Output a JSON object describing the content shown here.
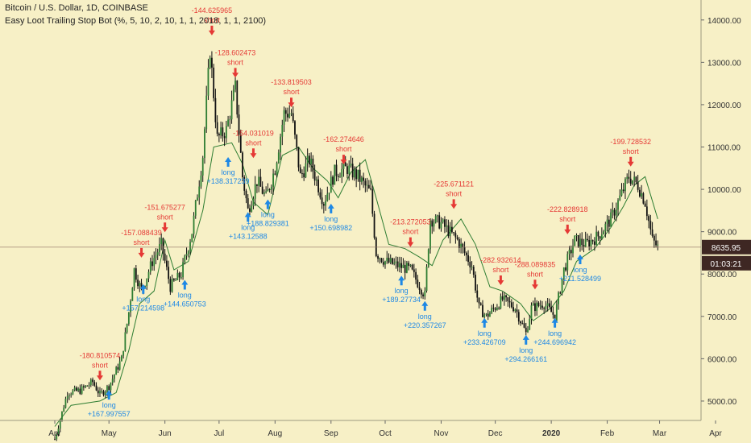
{
  "header": {
    "title": "Bitcoin / U.S. Dollar, 1D, COINBASE",
    "indicator": "Easy Loot Trailing Stop Bot (%, 5, 10, 2, 10, 1, 1, 2018, 1, 1, 2100)"
  },
  "price_badge": {
    "last_price": "8635.95",
    "countdown": "01:03:21"
  },
  "colors": {
    "background": "#f7f0c6",
    "long": "#1e88e5",
    "short": "#e53935",
    "stop_line": "#2e7d32",
    "stop_line_dark": "#3e2723",
    "candle": "#111111"
  },
  "chart_data": {
    "type": "candlestick",
    "x_axis": {
      "date_range": [
        "2019-04-01",
        "2020-04-01"
      ],
      "ticks": [
        {
          "date": "2019-04-01",
          "label": "Apr"
        },
        {
          "date": "2019-05-01",
          "label": "May"
        },
        {
          "date": "2019-06-01",
          "label": "Jun"
        },
        {
          "date": "2019-07-01",
          "label": "Jul"
        },
        {
          "date": "2019-08-01",
          "label": "Aug"
        },
        {
          "date": "2019-09-01",
          "label": "Sep"
        },
        {
          "date": "2019-10-01",
          "label": "Oct"
        },
        {
          "date": "2019-11-01",
          "label": "Nov"
        },
        {
          "date": "2019-12-01",
          "label": "Dec"
        },
        {
          "date": "2020-01-01",
          "label": "2020"
        },
        {
          "date": "2020-02-01",
          "label": "Feb"
        },
        {
          "date": "2020-03-01",
          "label": "Mar"
        },
        {
          "date": "2020-04-01",
          "label": "Apr"
        }
      ]
    },
    "y_axis": {
      "range": [
        4200,
        14700
      ],
      "ticks": [
        {
          "value": 5000,
          "label": "5000.00"
        },
        {
          "value": 6000,
          "label": "6000.00"
        },
        {
          "value": 7000,
          "label": "7000.00"
        },
        {
          "value": 8000,
          "label": "8000.00"
        },
        {
          "value": 9000,
          "label": "9000.00"
        },
        {
          "value": 10000,
          "label": "10000.00"
        },
        {
          "value": 11000,
          "label": "11000.00"
        },
        {
          "value": 12000,
          "label": "12000.00"
        },
        {
          "value": 13000,
          "label": "13000.00"
        },
        {
          "value": 14000,
          "label": "14000.00"
        }
      ]
    },
    "price_path": [
      [
        "2019-04-01",
        4100
      ],
      [
        "2019-04-08",
        5200
      ],
      [
        "2019-04-15",
        5250
      ],
      [
        "2019-04-22",
        5450
      ],
      [
        "2019-04-26",
        5150
      ],
      [
        "2019-05-01",
        5350
      ],
      [
        "2019-05-08",
        6000
      ],
      [
        "2019-05-12",
        7100
      ],
      [
        "2019-05-15",
        8100
      ],
      [
        "2019-05-19",
        7600
      ],
      [
        "2019-05-25",
        8300
      ],
      [
        "2019-05-30",
        8700
      ],
      [
        "2019-06-04",
        7700
      ],
      [
        "2019-06-10",
        8000
      ],
      [
        "2019-06-16",
        9000
      ],
      [
        "2019-06-22",
        10800
      ],
      [
        "2019-06-26",
        13300
      ],
      [
        "2019-06-30",
        11200
      ],
      [
        "2019-07-05",
        11400
      ],
      [
        "2019-07-10",
        12400
      ],
      [
        "2019-07-14",
        10300
      ],
      [
        "2019-07-17",
        9500
      ],
      [
        "2019-07-22",
        10200
      ],
      [
        "2019-07-27",
        9800
      ],
      [
        "2019-08-01",
        10500
      ],
      [
        "2019-08-06",
        11800
      ],
      [
        "2019-08-10",
        11800
      ],
      [
        "2019-08-15",
        10300
      ],
      [
        "2019-08-20",
        10700
      ],
      [
        "2019-08-28",
        9700
      ],
      [
        "2019-09-03",
        10400
      ],
      [
        "2019-09-10",
        10500
      ],
      [
        "2019-09-16",
        10300
      ],
      [
        "2019-09-23",
        9900
      ],
      [
        "2019-09-26",
        8500
      ],
      [
        "2019-10-01",
        8300
      ],
      [
        "2019-10-08",
        8200
      ],
      [
        "2019-10-15",
        8100
      ],
      [
        "2019-10-23",
        7500
      ],
      [
        "2019-10-26",
        9300
      ],
      [
        "2019-11-01",
        9200
      ],
      [
        "2019-11-10",
        8800
      ],
      [
        "2019-11-18",
        8200
      ],
      [
        "2019-11-22",
        7200
      ],
      [
        "2019-11-26",
        7000
      ],
      [
        "2019-12-05",
        7400
      ],
      [
        "2019-12-12",
        7200
      ],
      [
        "2019-12-18",
        6600
      ],
      [
        "2019-12-21",
        7200
      ],
      [
        "2019-12-28",
        7300
      ],
      [
        "2020-01-03",
        7000
      ],
      [
        "2020-01-08",
        8100
      ],
      [
        "2020-01-14",
        8800
      ],
      [
        "2020-01-20",
        8700
      ],
      [
        "2020-01-27",
        8900
      ],
      [
        "2020-02-03",
        9300
      ],
      [
        "2020-02-08",
        9800
      ],
      [
        "2020-02-13",
        10300
      ],
      [
        "2020-02-18",
        10100
      ],
      [
        "2020-02-22",
        9700
      ],
      [
        "2020-02-26",
        8800
      ],
      [
        "2020-02-29",
        8636
      ]
    ],
    "stop_path": [
      [
        "2019-04-01",
        4400
      ],
      [
        "2019-04-10",
        4900
      ],
      [
        "2019-04-26",
        5000
      ],
      [
        "2019-05-05",
        5200
      ],
      [
        "2019-05-12",
        6200
      ],
      [
        "2019-05-18",
        7300
      ],
      [
        "2019-05-26",
        7600
      ],
      [
        "2019-06-01",
        8800
      ],
      [
        "2019-06-06",
        8100
      ],
      [
        "2019-06-14",
        8300
      ],
      [
        "2019-06-22",
        9500
      ],
      [
        "2019-06-28",
        11000
      ],
      [
        "2019-07-08",
        11100
      ],
      [
        "2019-07-14",
        10600
      ],
      [
        "2019-07-20",
        9700
      ],
      [
        "2019-07-28",
        9400
      ],
      [
        "2019-08-05",
        10800
      ],
      [
        "2019-08-14",
        11000
      ],
      [
        "2019-08-22",
        10500
      ],
      [
        "2019-08-30",
        10200
      ],
      [
        "2019-09-05",
        9800
      ],
      [
        "2019-09-12",
        10400
      ],
      [
        "2019-09-20",
        10700
      ],
      [
        "2019-09-26",
        9800
      ],
      [
        "2019-10-03",
        8700
      ],
      [
        "2019-10-12",
        8600
      ],
      [
        "2019-10-20",
        8400
      ],
      [
        "2019-10-27",
        8200
      ],
      [
        "2019-11-02",
        8800
      ],
      [
        "2019-11-12",
        9300
      ],
      [
        "2019-11-20",
        8700
      ],
      [
        "2019-11-28",
        7700
      ],
      [
        "2019-12-05",
        7600
      ],
      [
        "2019-12-15",
        7300
      ],
      [
        "2019-12-22",
        6900
      ],
      [
        "2020-01-01",
        7200
      ],
      [
        "2020-01-08",
        7600
      ],
      [
        "2020-01-15",
        8300
      ],
      [
        "2020-01-25",
        8600
      ],
      [
        "2020-02-03",
        9100
      ],
      [
        "2020-02-10",
        9600
      ],
      [
        "2020-02-16",
        10100
      ],
      [
        "2020-02-22",
        10300
      ],
      [
        "2020-02-29",
        9300
      ]
    ],
    "signals": [
      {
        "date": "2019-04-26",
        "price": 5450,
        "type": "short",
        "label": "short",
        "pnl": "-180.810574"
      },
      {
        "date": "2019-05-01",
        "price": 5300,
        "type": "long",
        "label": "long",
        "pnl": "+167.997557"
      },
      {
        "date": "2019-05-19",
        "price": 8350,
        "type": "short",
        "label": "short",
        "pnl": "-157.088439"
      },
      {
        "date": "2019-05-20",
        "price": 7800,
        "type": "long",
        "label": "long",
        "pnl": "+157.214598"
      },
      {
        "date": "2019-06-01",
        "price": 8950,
        "type": "short",
        "label": "short",
        "pnl": "-151.675277"
      },
      {
        "date": "2019-06-12",
        "price": 7900,
        "type": "long",
        "label": "long",
        "pnl": "+144.650753"
      },
      {
        "date": "2019-06-27",
        "price": 13600,
        "type": "short",
        "label": "short",
        "pnl": "-144.625965"
      },
      {
        "date": "2019-07-06",
        "price": 10800,
        "type": "long",
        "label": "long",
        "pnl": "+138.317239"
      },
      {
        "date": "2019-07-10",
        "price": 12600,
        "type": "short",
        "label": "short",
        "pnl": "-128.602473"
      },
      {
        "date": "2019-07-17",
        "price": 9500,
        "type": "long",
        "label": "long",
        "pnl": "+143.12588"
      },
      {
        "date": "2019-07-20",
        "price": 10700,
        "type": "short",
        "label": "short",
        "pnl": "-154.031019"
      },
      {
        "date": "2019-07-28",
        "price": 9800,
        "type": "long",
        "label": "long",
        "pnl": "+188.829381"
      },
      {
        "date": "2019-08-10",
        "price": 11900,
        "type": "short",
        "label": "short",
        "pnl": "-133.819503"
      },
      {
        "date": "2019-09-01",
        "price": 9700,
        "type": "long",
        "label": "long",
        "pnl": "+150.698982"
      },
      {
        "date": "2019-09-08",
        "price": 10550,
        "type": "short",
        "label": "short",
        "pnl": "-162.274646"
      },
      {
        "date": "2019-10-10",
        "price": 8000,
        "type": "long",
        "label": "long",
        "pnl": "+189.27734"
      },
      {
        "date": "2019-10-15",
        "price": 8600,
        "type": "short",
        "label": "short",
        "pnl": "-213.272053"
      },
      {
        "date": "2019-10-23",
        "price": 7400,
        "type": "long",
        "label": "long",
        "pnl": "+220.357267"
      },
      {
        "date": "2019-11-08",
        "price": 9500,
        "type": "short",
        "label": "short",
        "pnl": "-225.671121"
      },
      {
        "date": "2019-11-25",
        "price": 7000,
        "type": "long",
        "label": "long",
        "pnl": "+233.426709"
      },
      {
        "date": "2019-12-04",
        "price": 7700,
        "type": "short",
        "label": "short",
        "pnl": "-282.932614"
      },
      {
        "date": "2019-12-18",
        "price": 6600,
        "type": "long",
        "label": "long",
        "pnl": "+294.266161"
      },
      {
        "date": "2019-12-23",
        "price": 7600,
        "type": "short",
        "label": "short",
        "pnl": "-288.089835"
      },
      {
        "date": "2020-01-03",
        "price": 7000,
        "type": "long",
        "label": "long",
        "pnl": "+244.696942"
      },
      {
        "date": "2020-01-10",
        "price": 8900,
        "type": "short",
        "label": "short",
        "pnl": "-222.828918"
      },
      {
        "date": "2020-01-17",
        "price": 8500,
        "type": "long",
        "label": "long",
        "pnl": "+211.528499"
      },
      {
        "date": "2020-02-14",
        "price": 10500,
        "type": "short",
        "label": "short",
        "pnl": "-199.728532"
      }
    ]
  }
}
